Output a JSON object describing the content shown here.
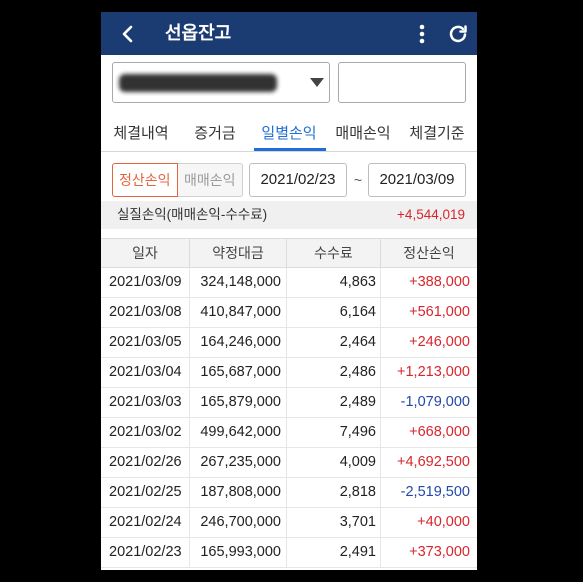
{
  "header": {
    "title": "선옵잔고",
    "back_icon": "chevron-left-icon",
    "menu_icon": "more-vertical-icon",
    "refresh_icon": "refresh-icon"
  },
  "account": {
    "dropdown_icon": "caret-down-icon"
  },
  "tabs": [
    {
      "label": "체결내역",
      "active": false
    },
    {
      "label": "증거금",
      "active": false
    },
    {
      "label": "일별손익",
      "active": true
    },
    {
      "label": "매매손익",
      "active": false
    },
    {
      "label": "체결기준",
      "active": false
    }
  ],
  "filter": {
    "modes": [
      {
        "label": "정산손익",
        "active": true
      },
      {
        "label": "매매손익",
        "active": false
      }
    ],
    "date_from": "2021/02/23",
    "date_separator": "~",
    "date_to": "2021/03/09"
  },
  "summary": {
    "label": "실질손익(매매손익-수수료)",
    "value": "+4,544,019"
  },
  "table": {
    "columns": [
      "일자",
      "약정대금",
      "수수료",
      "정산손익"
    ],
    "rows": [
      {
        "date": "2021/03/09",
        "amount": "324,148,000",
        "fee": "4,863",
        "pnl": "+388,000"
      },
      {
        "date": "2021/03/08",
        "amount": "410,847,000",
        "fee": "6,164",
        "pnl": "+561,000"
      },
      {
        "date": "2021/03/05",
        "amount": "164,246,000",
        "fee": "2,464",
        "pnl": "+246,000"
      },
      {
        "date": "2021/03/04",
        "amount": "165,687,000",
        "fee": "2,486",
        "pnl": "+1,213,000"
      },
      {
        "date": "2021/03/03",
        "amount": "165,879,000",
        "fee": "2,489",
        "pnl": "-1,079,000"
      },
      {
        "date": "2021/03/02",
        "amount": "499,642,000",
        "fee": "7,496",
        "pnl": "+668,000"
      },
      {
        "date": "2021/02/26",
        "amount": "267,235,000",
        "fee": "4,009",
        "pnl": "+4,692,500"
      },
      {
        "date": "2021/02/25",
        "amount": "187,808,000",
        "fee": "2,818",
        "pnl": "-2,519,500"
      },
      {
        "date": "2021/02/24",
        "amount": "246,700,000",
        "fee": "3,701",
        "pnl": "+40,000"
      },
      {
        "date": "2021/02/23",
        "amount": "165,993,000",
        "fee": "2,491",
        "pnl": "+373,000"
      }
    ]
  },
  "colors": {
    "header_bg": "#1b3c73",
    "accent": "#1f6fd6",
    "toggle_active": "#e4643e",
    "positive": "#d8262d",
    "negative": "#2447a8"
  }
}
